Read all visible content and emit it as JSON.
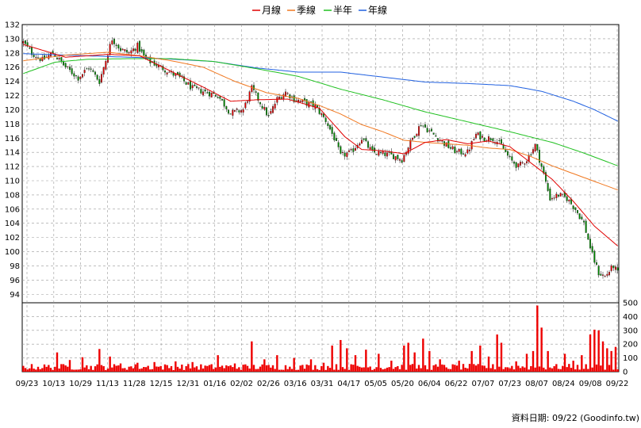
{
  "chart_data": {
    "type": "candlestick",
    "legend": [
      {
        "label": "月線",
        "color": "#e00000"
      },
      {
        "label": "季線",
        "color": "#f07820"
      },
      {
        "label": "半年",
        "color": "#20c020"
      },
      {
        "label": "年線",
        "color": "#2060e0"
      }
    ],
    "source": "資料日期: 09/22 (Goodinfo.tw)",
    "price_axis": {
      "ylim": [
        92.8,
        132
      ],
      "ticks": [
        132,
        130,
        128,
        126,
        124,
        122,
        120,
        118,
        116,
        114,
        112,
        110,
        108,
        106,
        104,
        102,
        100,
        98,
        96,
        94
      ]
    },
    "volume_axis": {
      "ylim": [
        0,
        500
      ],
      "ticks": [
        500,
        400,
        300,
        200,
        100,
        0
      ]
    },
    "x_tick_labels": [
      "09/23",
      "10/13",
      "10/29",
      "11/13",
      "11/28",
      "12/15",
      "12/31",
      "01/16",
      "02/02",
      "02/26",
      "03/16",
      "03/31",
      "04/17",
      "05/05",
      "05/20",
      "06/04",
      "06/22",
      "07/07",
      "07/23",
      "08/07",
      "08/24",
      "09/08",
      "09/22"
    ],
    "close_anchors": [
      [
        0,
        129.5
      ],
      [
        4,
        128
      ],
      [
        9,
        127
      ],
      [
        14,
        128
      ],
      [
        20,
        126
      ],
      [
        26,
        124.5
      ],
      [
        31,
        126
      ],
      [
        36,
        124
      ],
      [
        42,
        130
      ],
      [
        46,
        128.5
      ],
      [
        50,
        128
      ],
      [
        54,
        129
      ],
      [
        58,
        127
      ],
      [
        62,
        126.5
      ],
      [
        68,
        125.5
      ],
      [
        74,
        124.5
      ],
      [
        80,
        123
      ],
      [
        86,
        122.5
      ],
      [
        92,
        122
      ],
      [
        98,
        119.5
      ],
      [
        104,
        120
      ],
      [
        108,
        123
      ],
      [
        112,
        121
      ],
      [
        116,
        119
      ],
      [
        120,
        121.5
      ],
      [
        124,
        122.5
      ],
      [
        128,
        121.5
      ],
      [
        133,
        121
      ],
      [
        138,
        120.5
      ],
      [
        143,
        118.5
      ],
      [
        147,
        116
      ],
      [
        150,
        113.5
      ],
      [
        155,
        114
      ],
      [
        160,
        116
      ],
      [
        165,
        114
      ],
      [
        170,
        113.8
      ],
      [
        175,
        113.5
      ],
      [
        179,
        113
      ],
      [
        184,
        116
      ],
      [
        188,
        118
      ],
      [
        192,
        117
      ],
      [
        196,
        116
      ],
      [
        200,
        115
      ],
      [
        205,
        114
      ],
      [
        210,
        114
      ],
      [
        214,
        116.5
      ],
      [
        218,
        116
      ],
      [
        222,
        116
      ],
      [
        226,
        115
      ],
      [
        230,
        113
      ],
      [
        234,
        112
      ],
      [
        238,
        113
      ],
      [
        242,
        115
      ],
      [
        245,
        112
      ],
      [
        249,
        107.5
      ],
      [
        253,
        108
      ],
      [
        257,
        107.5
      ],
      [
        261,
        106
      ],
      [
        265,
        104
      ],
      [
        269,
        99.5
      ],
      [
        272,
        97
      ],
      [
        275,
        96.5
      ],
      [
        279,
        98
      ],
      [
        281,
        97
      ]
    ],
    "ma_month": [
      [
        0,
        129.2
      ],
      [
        20,
        127.4
      ],
      [
        40,
        127.8
      ],
      [
        55,
        127.6
      ],
      [
        70,
        125.4
      ],
      [
        85,
        123.2
      ],
      [
        98,
        121.2
      ],
      [
        110,
        121.4
      ],
      [
        125,
        121.5
      ],
      [
        140,
        120.2
      ],
      [
        152,
        116.2
      ],
      [
        160,
        114.4
      ],
      [
        170,
        114.2
      ],
      [
        180,
        113.8
      ],
      [
        190,
        115.4
      ],
      [
        200,
        115.8
      ],
      [
        210,
        115.2
      ],
      [
        220,
        115.6
      ],
      [
        230,
        114.8
      ],
      [
        240,
        112.5
      ],
      [
        250,
        110.2
      ],
      [
        260,
        107.1
      ],
      [
        270,
        103.6
      ],
      [
        281,
        100.8
      ]
    ],
    "ma_quarter": [
      [
        0,
        126.9
      ],
      [
        20,
        127.7
      ],
      [
        40,
        128.1
      ],
      [
        55,
        127.6
      ],
      [
        70,
        126.9
      ],
      [
        85,
        126
      ],
      [
        100,
        124
      ],
      [
        115,
        122.4
      ],
      [
        130,
        121.6
      ],
      [
        140,
        120.6
      ],
      [
        150,
        119.4
      ],
      [
        160,
        117.9
      ],
      [
        170,
        116.9
      ],
      [
        180,
        115.7
      ],
      [
        190,
        115.4
      ],
      [
        200,
        115.2
      ],
      [
        210,
        115
      ],
      [
        220,
        114.6
      ],
      [
        230,
        114.4
      ],
      [
        240,
        113.4
      ],
      [
        250,
        112.1
      ],
      [
        260,
        111
      ],
      [
        270,
        109.9
      ],
      [
        281,
        108.7
      ]
    ],
    "ma_half": [
      [
        0,
        125.1
      ],
      [
        15,
        126.7
      ],
      [
        30,
        127.1
      ],
      [
        50,
        127.2
      ],
      [
        70,
        127.2
      ],
      [
        90,
        126.8
      ],
      [
        110,
        125.8
      ],
      [
        130,
        124.7
      ],
      [
        150,
        122.9
      ],
      [
        170,
        121.4
      ],
      [
        190,
        119.7
      ],
      [
        210,
        118.3
      ],
      [
        230,
        116.9
      ],
      [
        250,
        115.4
      ],
      [
        265,
        113.9
      ],
      [
        281,
        112.1
      ]
    ],
    "ma_year": [
      [
        0,
        127.9
      ],
      [
        30,
        127.6
      ],
      [
        60,
        127.3
      ],
      [
        90,
        126.8
      ],
      [
        110,
        125.9
      ],
      [
        130,
        125.3
      ],
      [
        150,
        125.3
      ],
      [
        170,
        124.6
      ],
      [
        190,
        123.9
      ],
      [
        210,
        123.7
      ],
      [
        230,
        123.4
      ],
      [
        245,
        122.6
      ],
      [
        260,
        121.2
      ],
      [
        270,
        120
      ],
      [
        281,
        118.4
      ]
    ],
    "volume_spikes": [
      [
        16,
        140
      ],
      [
        22,
        85
      ],
      [
        28,
        105
      ],
      [
        36,
        165
      ],
      [
        41,
        110
      ],
      [
        46,
        60
      ],
      [
        54,
        65
      ],
      [
        62,
        70
      ],
      [
        72,
        75
      ],
      [
        80,
        70
      ],
      [
        92,
        120
      ],
      [
        100,
        60
      ],
      [
        108,
        220
      ],
      [
        114,
        90
      ],
      [
        120,
        120
      ],
      [
        128,
        100
      ],
      [
        136,
        90
      ],
      [
        142,
        65
      ],
      [
        146,
        190
      ],
      [
        150,
        230
      ],
      [
        153,
        170
      ],
      [
        157,
        120
      ],
      [
        162,
        160
      ],
      [
        168,
        130
      ],
      [
        174,
        80
      ],
      [
        180,
        190
      ],
      [
        182,
        210
      ],
      [
        185,
        140
      ],
      [
        189,
        240
      ],
      [
        192,
        150
      ],
      [
        197,
        90
      ],
      [
        206,
        80
      ],
      [
        212,
        150
      ],
      [
        216,
        190
      ],
      [
        220,
        110
      ],
      [
        224,
        270
      ],
      [
        226,
        210
      ],
      [
        233,
        75
      ],
      [
        238,
        130
      ],
      [
        241,
        150
      ],
      [
        243,
        480
      ],
      [
        245,
        320
      ],
      [
        248,
        150
      ],
      [
        256,
        130
      ],
      [
        260,
        80
      ],
      [
        264,
        120
      ],
      [
        268,
        270
      ],
      [
        270,
        305
      ],
      [
        272,
        300
      ],
      [
        274,
        220
      ],
      [
        276,
        170
      ],
      [
        278,
        150
      ],
      [
        280,
        180
      ]
    ]
  }
}
